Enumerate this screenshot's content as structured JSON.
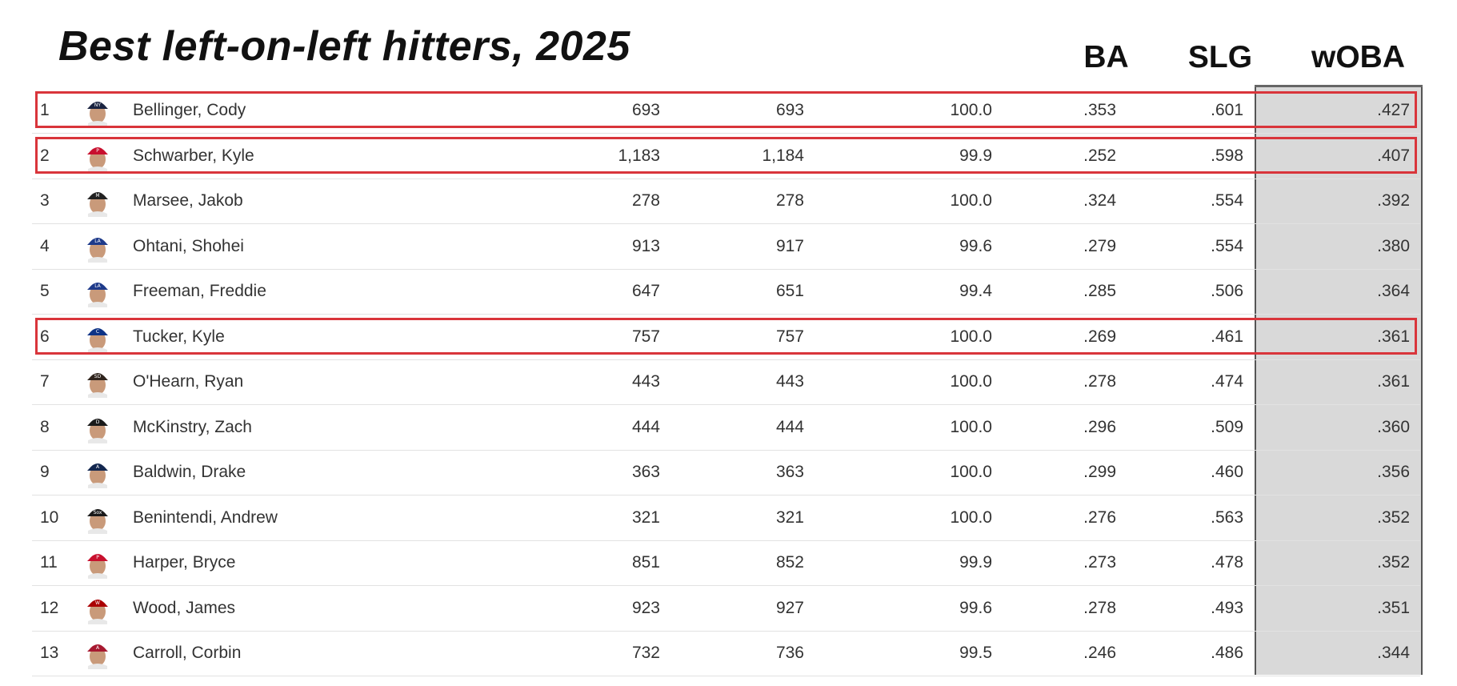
{
  "title": "Best left-on-left hitters, 2025",
  "headers": {
    "ba": "BA",
    "slg": "SLG",
    "woba": "wOBA"
  },
  "colors": {
    "highlight": "#d9353b",
    "woba_column_bg": "#d9d9d9"
  },
  "highlighted_ranks": [
    1,
    2,
    6
  ],
  "chart_data": {
    "type": "table",
    "title": "Best left-on-left hitters, 2025",
    "columns": [
      "",
      "",
      "",
      "",
      "",
      "",
      "BA",
      "SLG",
      "wOBA"
    ],
    "rows": [
      {
        "rank": "1",
        "name": "Bellinger, Cody",
        "n1": "693",
        "n2": "693",
        "pct": "100.0",
        "ba": ".353",
        "slg": ".601",
        "woba": ".427",
        "cap": "#1a2340",
        "logo": "NY"
      },
      {
        "rank": "2",
        "name": "Schwarber, Kyle",
        "n1": "1,183",
        "n2": "1,184",
        "pct": "99.9",
        "ba": ".252",
        "slg": ".598",
        "woba": ".407",
        "cap": "#c8102e",
        "logo": "P"
      },
      {
        "rank": "3",
        "name": "Marsee, Jakob",
        "n1": "278",
        "n2": "278",
        "pct": "100.0",
        "ba": ".324",
        "slg": ".554",
        "woba": ".392",
        "cap": "#222222",
        "logo": "M"
      },
      {
        "rank": "4",
        "name": "Ohtani, Shohei",
        "n1": "913",
        "n2": "917",
        "pct": "99.6",
        "ba": ".279",
        "slg": ".554",
        "woba": ".380",
        "cap": "#1e3a8a",
        "logo": "LA"
      },
      {
        "rank": "5",
        "name": "Freeman, Freddie",
        "n1": "647",
        "n2": "651",
        "pct": "99.4",
        "ba": ".285",
        "slg": ".506",
        "woba": ".364",
        "cap": "#1e3a8a",
        "logo": "LA"
      },
      {
        "rank": "6",
        "name": "Tucker, Kyle",
        "n1": "757",
        "n2": "757",
        "pct": "100.0",
        "ba": ".269",
        "slg": ".461",
        "woba": ".361",
        "cap": "#0e3386",
        "logo": "C"
      },
      {
        "rank": "7",
        "name": "O'Hearn, Ryan",
        "n1": "443",
        "n2": "443",
        "pct": "100.0",
        "ba": ".278",
        "slg": ".474",
        "woba": ".361",
        "cap": "#2f241d",
        "logo": "SD"
      },
      {
        "rank": "8",
        "name": "McKinstry, Zach",
        "n1": "444",
        "n2": "444",
        "pct": "100.0",
        "ba": ".296",
        "slg": ".509",
        "woba": ".360",
        "cap": "#1a1a1a",
        "logo": "D"
      },
      {
        "rank": "9",
        "name": "Baldwin, Drake",
        "n1": "363",
        "n2": "363",
        "pct": "100.0",
        "ba": ".299",
        "slg": ".460",
        "woba": ".356",
        "cap": "#13274f",
        "logo": "A"
      },
      {
        "rank": "10",
        "name": "Benintendi, Andrew",
        "n1": "321",
        "n2": "321",
        "pct": "100.0",
        "ba": ".276",
        "slg": ".563",
        "woba": ".352",
        "cap": "#1a1a1a",
        "logo": "Sox"
      },
      {
        "rank": "11",
        "name": "Harper, Bryce",
        "n1": "851",
        "n2": "852",
        "pct": "99.9",
        "ba": ".273",
        "slg": ".478",
        "woba": ".352",
        "cap": "#c8102e",
        "logo": "P"
      },
      {
        "rank": "12",
        "name": "Wood, James",
        "n1": "923",
        "n2": "927",
        "pct": "99.6",
        "ba": ".278",
        "slg": ".493",
        "woba": ".351",
        "cap": "#ab0003",
        "logo": "W"
      },
      {
        "rank": "13",
        "name": "Carroll, Corbin",
        "n1": "732",
        "n2": "736",
        "pct": "99.5",
        "ba": ".246",
        "slg": ".486",
        "woba": ".344",
        "cap": "#a71930",
        "logo": "A"
      }
    ]
  }
}
